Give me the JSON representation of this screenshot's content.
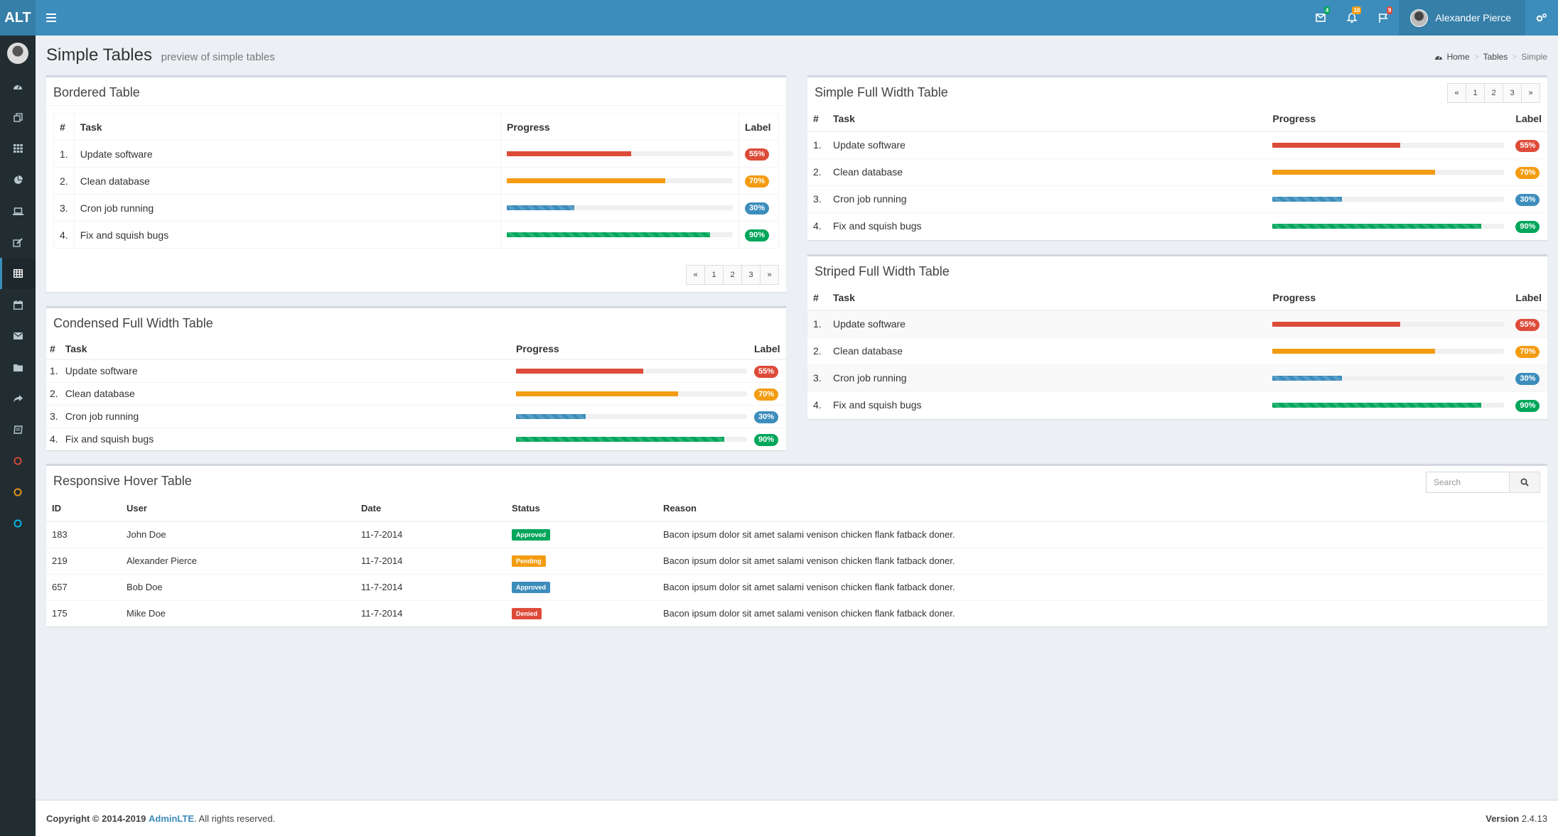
{
  "header": {
    "logo": "ALT",
    "messages_count": "4",
    "notifications_count": "10",
    "tasks_count": "9",
    "user_name": "Alexander Pierce"
  },
  "page": {
    "title": "Simple Tables",
    "subtitle": "preview of simple tables",
    "breadcrumb": [
      "Home",
      "Tables",
      "Simple"
    ]
  },
  "colors": {
    "danger": "#dd4b39",
    "warning": "#f39c12",
    "primary": "#3c8dbc",
    "success": "#00a65a"
  },
  "task_columns": [
    "#",
    "Task",
    "Progress",
    "Label"
  ],
  "tasks": [
    {
      "num": "1.",
      "task": "Update software",
      "progress": 55,
      "label": "55%",
      "color": "#dd4b39",
      "striped": false
    },
    {
      "num": "2.",
      "task": "Clean database",
      "progress": 70,
      "label": "70%",
      "color": "#f39c12",
      "striped": false
    },
    {
      "num": "3.",
      "task": "Cron job running",
      "progress": 30,
      "label": "30%",
      "color": "#3c8dbc",
      "striped": true
    },
    {
      "num": "4.",
      "task": "Fix and squish bugs",
      "progress": 90,
      "label": "90%",
      "color": "#00a65a",
      "striped": true
    }
  ],
  "pagination": [
    "«",
    "1",
    "2",
    "3",
    "»"
  ],
  "boxes": {
    "bordered": "Bordered Table",
    "simple_full": "Simple Full Width Table",
    "condensed": "Condensed Full Width Table",
    "striped": "Striped Full Width Table",
    "hover": "Responsive Hover Table"
  },
  "hover": {
    "search_placeholder": "Search",
    "columns": [
      "ID",
      "User",
      "Date",
      "Status",
      "Reason"
    ],
    "rows": [
      {
        "id": "183",
        "user": "John Doe",
        "date": "11-7-2014",
        "status": "Approved",
        "status_color": "#00a65a",
        "reason": "Bacon ipsum dolor sit amet salami venison chicken flank fatback doner."
      },
      {
        "id": "219",
        "user": "Alexander Pierce",
        "date": "11-7-2014",
        "status": "Pending",
        "status_color": "#f39c12",
        "reason": "Bacon ipsum dolor sit amet salami venison chicken flank fatback doner."
      },
      {
        "id": "657",
        "user": "Bob Doe",
        "date": "11-7-2014",
        "status": "Approved",
        "status_color": "#3c8dbc",
        "reason": "Bacon ipsum dolor sit amet salami venison chicken flank fatback doner."
      },
      {
        "id": "175",
        "user": "Mike Doe",
        "date": "11-7-2014",
        "status": "Denied",
        "status_color": "#dd4b39",
        "reason": "Bacon ipsum dolor sit amet salami venison chicken flank fatback doner."
      }
    ]
  },
  "footer": {
    "copyright_prefix": "Copyright © 2014-2019",
    "brand": "AdminLTE",
    "suffix": ". All rights reserved.",
    "version_label": "Version",
    "version": "2.4.13"
  },
  "sidebar": {
    "icons": [
      "dashboard-icon",
      "files-icon",
      "th-icon",
      "pie-chart-icon",
      "laptop-icon",
      "edit-icon",
      "table-icon",
      "calendar-icon",
      "envelope-icon",
      "folder-icon",
      "share-icon",
      "book-icon",
      "circle-red-icon",
      "circle-yellow-icon",
      "circle-aqua-icon"
    ],
    "active_index": 6
  }
}
